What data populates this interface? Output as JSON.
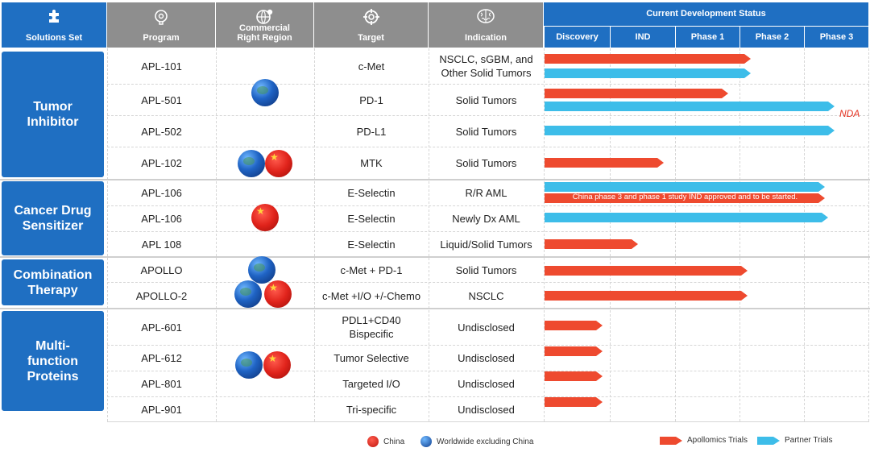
{
  "headers": {
    "solutions_set": "Solutions Set",
    "program": "Program",
    "commercial_right": "Commercial Right Region",
    "target": "Target",
    "indication": "Indication",
    "status_title": "Current Development Status",
    "stages": [
      "Discovery",
      "IND",
      "Phase 1",
      "Phase 2",
      "Phase 3"
    ]
  },
  "groups": [
    {
      "name": "Tumor Inhibitor"
    },
    {
      "name": "Cancer Drug Sensitizer"
    },
    {
      "name": "Combination Therapy"
    },
    {
      "name": "Multi-function Proteins"
    }
  ],
  "rows": [
    {
      "program": "APL-101",
      "target": "c-Met",
      "indication": "NSCLC, sGBM, and Other Solid Tumors"
    },
    {
      "program": "APL-501",
      "target": "PD-1",
      "indication": "Solid Tumors"
    },
    {
      "program": "APL-502",
      "target": "PD-L1",
      "indication": "Solid Tumors"
    },
    {
      "program": "APL-102",
      "target": "MTK",
      "indication": "Solid Tumors"
    },
    {
      "program": "APL-106",
      "target": "E-Selectin",
      "indication": "R/R AML"
    },
    {
      "program": "APL-106",
      "target": "E-Selectin",
      "indication": "Newly Dx AML"
    },
    {
      "program": "APL 108",
      "target": "E-Selectin",
      "indication": "Liquid/Solid Tumors"
    },
    {
      "program": "APOLLO",
      "target": "c-Met + PD-1",
      "indication": "Solid Tumors"
    },
    {
      "program": "APOLLO-2",
      "target": "c-Met +I/O +/-Chemo",
      "indication": "NSCLC"
    },
    {
      "program": "APL-601",
      "target": "PDL1+CD40 Bispecific",
      "indication": "Undisclosed"
    },
    {
      "program": "APL-612",
      "target": "Tumor Selective",
      "indication": "Undisclosed"
    },
    {
      "program": "APL-801",
      "target": "Targeted I/O",
      "indication": "Undisclosed"
    },
    {
      "program": "APL-901",
      "target": "Tri-specific",
      "indication": "Undisclosed"
    }
  ],
  "bars": [
    {
      "type": "apollomics",
      "progress": 0.64
    },
    {
      "type": "partner",
      "progress": 0.64
    },
    {
      "type": "apollomics",
      "progress": 0.57
    },
    {
      "type": "partner",
      "progress": 0.9
    },
    {
      "type": "partner",
      "progress": 0.9
    },
    {
      "type": "apollomics",
      "progress": 0.37
    },
    {
      "type": "partner",
      "progress": 0.87
    },
    {
      "type": "apollomics",
      "progress": 0.87
    },
    {
      "type": "partner",
      "progress": 0.88
    },
    {
      "type": "apollomics",
      "progress": 0.29
    },
    {
      "type": "apollomics",
      "progress": 0.63
    },
    {
      "type": "apollomics",
      "progress": 0.63
    },
    {
      "type": "apollomics",
      "progress": 0.18
    },
    {
      "type": "apollomics",
      "progress": 0.18
    },
    {
      "type": "apollomics",
      "progress": 0.18
    },
    {
      "type": "apollomics",
      "progress": 0.18
    }
  ],
  "bar_note": "China phase 3 and phase 1 study IND approved and to be started.",
  "nda_label": "NDA",
  "legend": {
    "china": "China",
    "worldwide": "Worldwide excluding China",
    "apollomics": "Apollomics Trials",
    "partner": "Partner Trials"
  },
  "colors": {
    "header_blue": "#1f6fc2",
    "header_gray": "#8e8e8e",
    "apollomics_red": "#ee4a2f",
    "partner_blue": "#3dbde9",
    "nda_red": "#e53322"
  },
  "icons": {
    "solutions_set": "puzzle-icon",
    "program": "brain-gear-icon",
    "commercial_right": "globe-pin-icon",
    "target": "crosshair-icon",
    "indication": "brain-icon",
    "china": "china-flag-icon",
    "worldwide": "globe-icon"
  }
}
